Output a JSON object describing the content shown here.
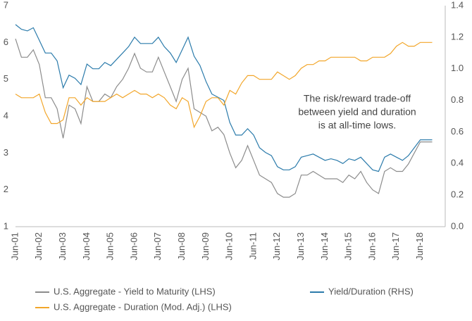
{
  "chart_data": {
    "type": "line",
    "categories": [
      "Jun-01",
      null,
      null,
      null,
      "Jun-02",
      null,
      null,
      null,
      "Jun-03",
      null,
      null,
      null,
      "Jun-04",
      null,
      null,
      null,
      "Jun-05",
      null,
      null,
      null,
      "Jun-06",
      null,
      null,
      null,
      "Jun-07",
      null,
      null,
      null,
      "Jun-08",
      null,
      null,
      null,
      "Jun-09",
      null,
      null,
      null,
      "Jun-10",
      null,
      null,
      null,
      "Jun-11",
      null,
      null,
      null,
      "Jun-12",
      null,
      null,
      null,
      "Jun-13",
      null,
      null,
      null,
      "Jun-14",
      null,
      null,
      null,
      "Jun-15",
      null,
      null,
      null,
      "Jun-16",
      null,
      null,
      null,
      "Jun-17",
      null,
      null,
      null,
      "Jun-18",
      null,
      null
    ],
    "series": [
      {
        "name": "U.S. Aggregate - Yield to Maturity (LHS)",
        "color": "#8c8c8c",
        "axis": "y",
        "values": [
          6.1,
          5.6,
          5.6,
          5.8,
          5.4,
          4.5,
          4.5,
          4.2,
          3.4,
          4.3,
          4.2,
          3.8,
          4.8,
          4.4,
          4.4,
          4.6,
          4.5,
          4.8,
          5.0,
          5.3,
          5.7,
          5.3,
          5.2,
          5.2,
          5.6,
          5.2,
          4.8,
          4.4,
          5.0,
          5.3,
          4.2,
          4.1,
          4.0,
          3.6,
          3.7,
          3.5,
          3.0,
          2.6,
          2.8,
          3.2,
          2.8,
          2.4,
          2.3,
          2.2,
          1.9,
          1.8,
          1.8,
          1.9,
          2.4,
          2.4,
          2.5,
          2.4,
          2.3,
          2.3,
          2.3,
          2.2,
          2.4,
          2.3,
          2.5,
          2.2,
          2.0,
          1.9,
          2.5,
          2.6,
          2.5,
          2.5,
          2.7,
          3.0,
          3.3,
          3.3,
          3.3
        ]
      },
      {
        "name": "Yield/Duration (RHS)",
        "color": "#2b7bab",
        "axis": "y2",
        "values": [
          1.28,
          1.25,
          1.24,
          1.26,
          1.18,
          1.1,
          1.1,
          1.05,
          0.88,
          0.96,
          0.94,
          0.9,
          1.03,
          1.0,
          1.0,
          1.04,
          1.02,
          1.06,
          1.1,
          1.14,
          1.2,
          1.16,
          1.16,
          1.16,
          1.2,
          1.14,
          1.1,
          1.04,
          1.12,
          1.2,
          1.08,
          1.02,
          0.92,
          0.84,
          0.82,
          0.8,
          0.66,
          0.58,
          0.58,
          0.62,
          0.58,
          0.5,
          0.47,
          0.45,
          0.38,
          0.36,
          0.36,
          0.38,
          0.44,
          0.45,
          0.46,
          0.44,
          0.42,
          0.43,
          0.42,
          0.4,
          0.43,
          0.42,
          0.44,
          0.4,
          0.36,
          0.35,
          0.44,
          0.46,
          0.44,
          0.42,
          0.45,
          0.5,
          0.55,
          0.55,
          0.55
        ]
      },
      {
        "name": "U.S. Aggregate - Duration (Mod. Adj.) (LHS)",
        "color": "#f2a62a",
        "axis": "y",
        "values": [
          4.6,
          4.5,
          4.5,
          4.5,
          4.6,
          4.1,
          3.8,
          3.8,
          3.9,
          4.5,
          4.5,
          4.3,
          4.5,
          4.4,
          4.4,
          4.4,
          4.5,
          4.6,
          4.5,
          4.6,
          4.7,
          4.6,
          4.6,
          4.5,
          4.6,
          4.5,
          4.3,
          4.2,
          4.5,
          4.4,
          3.7,
          4.0,
          4.4,
          4.5,
          4.5,
          4.3,
          4.7,
          4.6,
          4.9,
          5.1,
          5.1,
          5.0,
          5.0,
          5.0,
          5.2,
          5.1,
          5.0,
          5.1,
          5.3,
          5.4,
          5.4,
          5.5,
          5.5,
          5.6,
          5.6,
          5.6,
          5.6,
          5.6,
          5.5,
          5.5,
          5.6,
          5.6,
          5.6,
          5.7,
          5.9,
          6.0,
          5.9,
          5.9,
          6.0,
          6.0,
          6.0
        ]
      }
    ],
    "ylim": [
      1,
      7
    ],
    "yticks": [
      1,
      2,
      3,
      4,
      5,
      6,
      7
    ],
    "y2lim": [
      0,
      1.4
    ],
    "y2ticks": [
      {
        "value": 0,
        "label": "0.0"
      },
      0.2,
      0.4,
      0.6,
      0.8,
      {
        "value": 1,
        "label": "1.0"
      },
      1.2,
      1.4
    ],
    "annotation": [
      "The risk/reward trade-off",
      "between yield and duration",
      "is at all-time lows."
    ]
  }
}
